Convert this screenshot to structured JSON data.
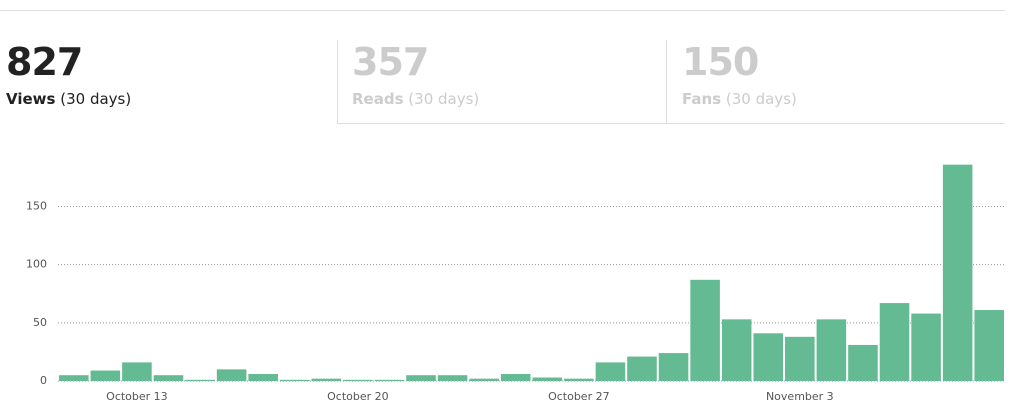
{
  "tabs": [
    {
      "value": "827",
      "label": "Views",
      "period": "(30 days)"
    },
    {
      "value": "357",
      "label": "Reads",
      "period": "(30 days)"
    },
    {
      "value": "150",
      "label": "Fans",
      "period": "(30 days)"
    }
  ],
  "chart_data": {
    "type": "bar",
    "color": "#64bb93",
    "categories": [
      null,
      null,
      "October 13",
      null,
      null,
      null,
      null,
      null,
      null,
      "October 20",
      null,
      null,
      null,
      null,
      null,
      null,
      "October 27",
      null,
      null,
      null,
      null,
      null,
      null,
      "November 3",
      null,
      null,
      null,
      null,
      null,
      null
    ],
    "values": [
      5,
      9,
      16,
      5,
      1,
      10,
      6,
      1,
      2,
      1,
      1,
      5,
      5,
      2,
      6,
      3,
      2,
      16,
      21,
      24,
      87,
      53,
      41,
      38,
      53,
      31,
      67,
      58,
      186,
      61
    ],
    "ylim": [
      0,
      190
    ],
    "yticks": [
      0,
      50,
      100,
      150
    ],
    "grid": true
  }
}
